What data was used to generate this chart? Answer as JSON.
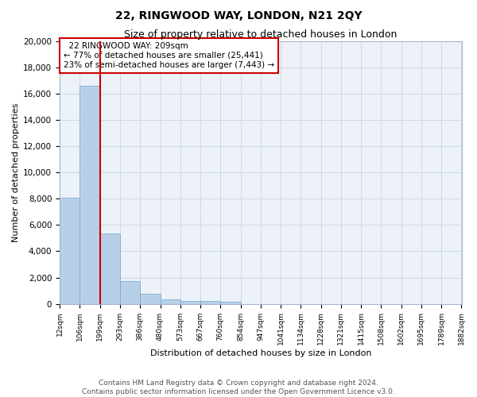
{
  "title": "22, RINGWOOD WAY, LONDON, N21 2QY",
  "subtitle": "Size of property relative to detached houses in London",
  "xlabel": "Distribution of detached houses by size in London",
  "ylabel": "Number of detached properties",
  "annotation_line1": "22 RINGWOOD WAY: 209sqm",
  "annotation_line2": "← 77% of detached houses are smaller (25,441)",
  "annotation_line3": "23% of semi-detached houses are larger (7,443) →",
  "footer_line1": "Contains HM Land Registry data © Crown copyright and database right 2024.",
  "footer_line2": "Contains public sector information licensed under the Open Government Licence v3.0.",
  "bar_values": [
    8050,
    16600,
    5350,
    1750,
    750,
    320,
    220,
    200,
    160,
    0,
    0,
    0,
    0,
    0,
    0,
    0,
    0,
    0,
    0,
    0
  ],
  "bin_edges": [
    12,
    106,
    199,
    293,
    386,
    480,
    573,
    667,
    760,
    854,
    947,
    1041,
    1134,
    1228,
    1321,
    1415,
    1508,
    1602,
    1695,
    1789,
    1882
  ],
  "tick_labels": [
    "12sqm",
    "106sqm",
    "199sqm",
    "293sqm",
    "386sqm",
    "480sqm",
    "573sqm",
    "667sqm",
    "760sqm",
    "854sqm",
    "947sqm",
    "1041sqm",
    "1134sqm",
    "1228sqm",
    "1321sqm",
    "1415sqm",
    "1508sqm",
    "1602sqm",
    "1695sqm",
    "1789sqm",
    "1882sqm"
  ],
  "vline_x": 199,
  "ylim": [
    0,
    20000
  ],
  "yticks": [
    0,
    2000,
    4000,
    6000,
    8000,
    10000,
    12000,
    14000,
    16000,
    18000,
    20000
  ],
  "bar_color": "#b8cfe8",
  "bar_edge_color": "#6fa8d4",
  "vline_color": "#cc0000",
  "grid_color": "#c8d4e4",
  "background_color": "#edf2f8",
  "annotation_box_color": "#cc0000",
  "title_fontsize": 10,
  "subtitle_fontsize": 9,
  "axis_label_fontsize": 8,
  "tick_fontsize": 6.5,
  "annotation_fontsize": 7.5,
  "footer_fontsize": 6.5,
  "ylabel_fontsize": 8
}
